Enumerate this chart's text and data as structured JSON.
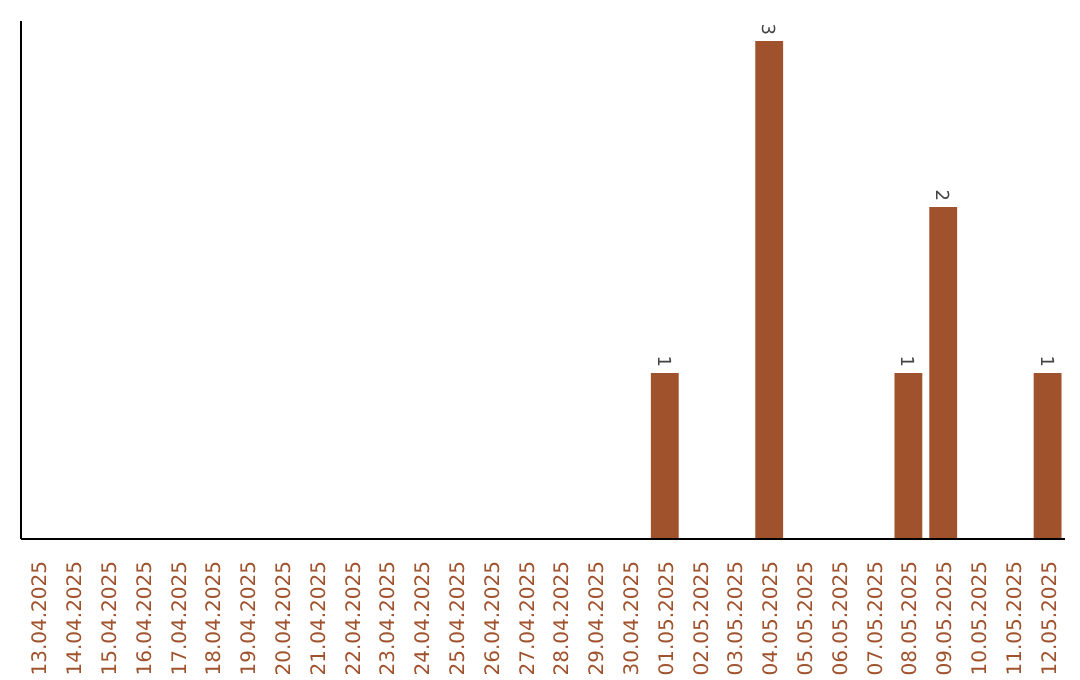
{
  "chart_data": {
    "type": "bar",
    "categories": [
      "13.04.2025",
      "14.04.2025",
      "15.04.2025",
      "16.04.2025",
      "17.04.2025",
      "18.04.2025",
      "19.04.2025",
      "20.04.2025",
      "21.04.2025",
      "22.04.2025",
      "23.04.2025",
      "24.04.2025",
      "25.04.2025",
      "26.04.2025",
      "27.04.2025",
      "28.04.2025",
      "29.04.2025",
      "30.04.2025",
      "01.05.2025",
      "02.05.2025",
      "03.05.2025",
      "04.05.2025",
      "05.05.2025",
      "06.05.2025",
      "07.05.2025",
      "08.05.2025",
      "09.05.2025",
      "10.05.2025",
      "11.05.2025",
      "12.05.2025"
    ],
    "values": [
      null,
      null,
      null,
      null,
      null,
      null,
      null,
      null,
      null,
      null,
      null,
      null,
      null,
      null,
      null,
      null,
      null,
      null,
      1,
      null,
      null,
      3,
      null,
      null,
      null,
      1,
      2,
      null,
      null,
      1
    ],
    "color": "#a0522d",
    "data_labels": true,
    "grid": false
  }
}
